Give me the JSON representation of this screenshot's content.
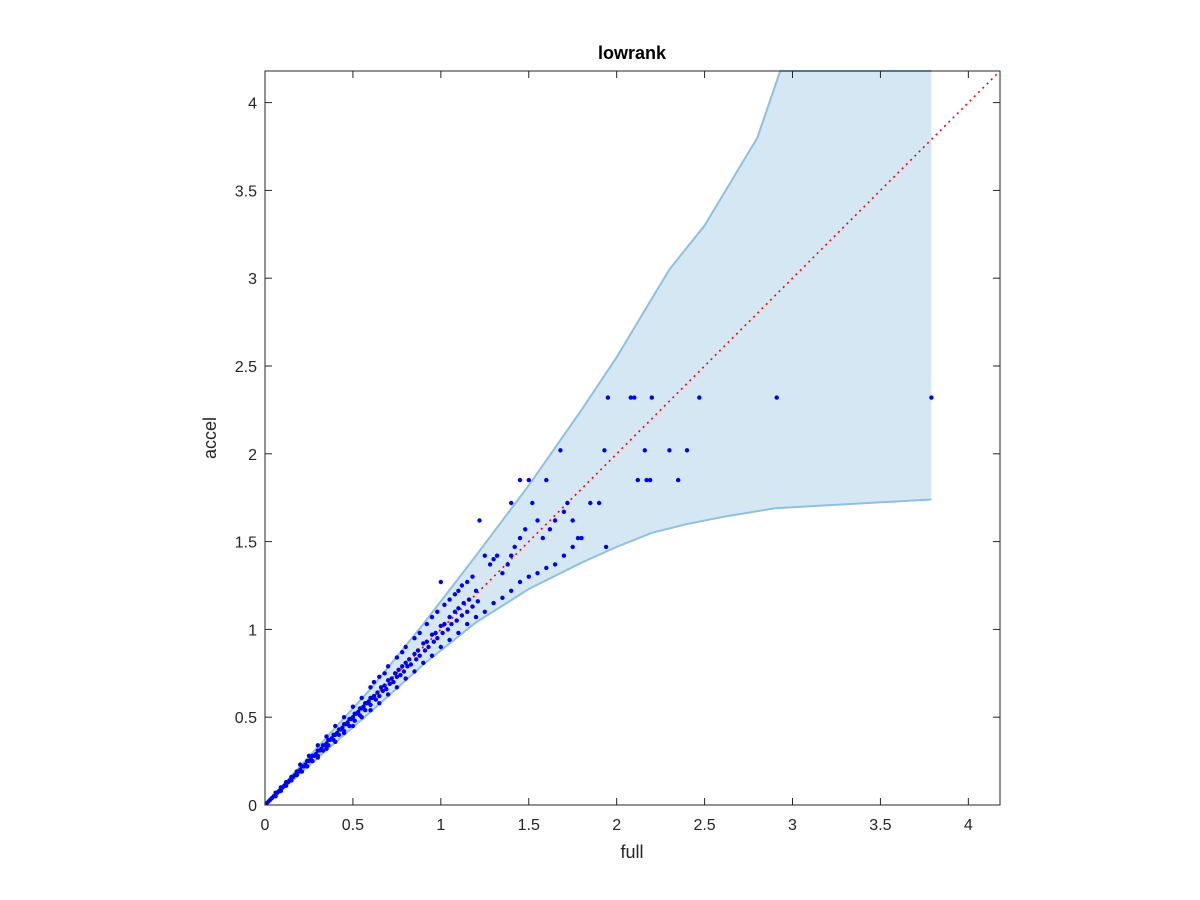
{
  "chart_data": {
    "type": "scatter",
    "title": "lowrank",
    "xlabel": "full",
    "ylabel": "accel",
    "xlim": [
      0,
      4.18
    ],
    "ylim": [
      0,
      4.18
    ],
    "xticks": [
      0,
      0.5,
      1,
      1.5,
      2,
      2.5,
      3,
      3.5,
      4
    ],
    "yticks": [
      0,
      0.5,
      1,
      1.5,
      2,
      2.5,
      3,
      3.5,
      4
    ],
    "xtick_labels": [
      "0",
      "0.5",
      "1",
      "1.5",
      "2",
      "2.5",
      "3",
      "3.5",
      "4"
    ],
    "ytick_labels": [
      "0",
      "0.5",
      "1",
      "1.5",
      "2",
      "2.5",
      "3",
      "3.5",
      "4"
    ],
    "grid": false,
    "legend": "none",
    "colors": {
      "points": "#0000ff",
      "band_fill": "#d6e7f4",
      "band_edge": "#8ec1e0",
      "reference_line": "#ff0000",
      "axes": "#262626"
    },
    "reference_line": {
      "style": "dotted",
      "points": [
        [
          0,
          0
        ],
        [
          4.18,
          4.18
        ]
      ]
    },
    "band": {
      "upper": [
        [
          0,
          0
        ],
        [
          0.3,
          0.33
        ],
        [
          0.6,
          0.66
        ],
        [
          0.9,
          1.03
        ],
        [
          1.2,
          1.42
        ],
        [
          1.5,
          1.82
        ],
        [
          1.8,
          2.25
        ],
        [
          2.0,
          2.55
        ],
        [
          2.3,
          3.05
        ],
        [
          2.5,
          3.3
        ],
        [
          2.8,
          3.8
        ],
        [
          2.93,
          4.18
        ],
        [
          3.79,
          4.18
        ]
      ],
      "lower": [
        [
          0,
          0
        ],
        [
          0.3,
          0.27
        ],
        [
          0.6,
          0.53
        ],
        [
          0.9,
          0.8
        ],
        [
          1.2,
          1.04
        ],
        [
          1.5,
          1.23
        ],
        [
          1.8,
          1.38
        ],
        [
          2.0,
          1.47
        ],
        [
          2.2,
          1.55
        ],
        [
          2.4,
          1.6
        ],
        [
          2.6,
          1.64
        ],
        [
          2.9,
          1.69
        ],
        [
          3.79,
          1.74
        ]
      ],
      "x_end": 3.79
    },
    "series": [
      {
        "points": [
          [
            0.01,
            0.01
          ],
          [
            0.02,
            0.02
          ],
          [
            0.03,
            0.03
          ],
          [
            0.04,
            0.04
          ],
          [
            0.05,
            0.05
          ],
          [
            0.06,
            0.05
          ],
          [
            0.06,
            0.07
          ],
          [
            0.07,
            0.07
          ],
          [
            0.08,
            0.08
          ],
          [
            0.09,
            0.08
          ],
          [
            0.09,
            0.1
          ],
          [
            0.1,
            0.1
          ],
          [
            0.11,
            0.11
          ],
          [
            0.12,
            0.11
          ],
          [
            0.12,
            0.13
          ],
          [
            0.13,
            0.13
          ],
          [
            0.14,
            0.14
          ],
          [
            0.15,
            0.14
          ],
          [
            0.15,
            0.16
          ],
          [
            0.16,
            0.16
          ],
          [
            0.17,
            0.17
          ],
          [
            0.18,
            0.17
          ],
          [
            0.18,
            0.19
          ],
          [
            0.19,
            0.19
          ],
          [
            0.2,
            0.2
          ],
          [
            0.21,
            0.19
          ],
          [
            0.21,
            0.22
          ],
          [
            0.22,
            0.22
          ],
          [
            0.23,
            0.23
          ],
          [
            0.24,
            0.22
          ],
          [
            0.24,
            0.25
          ],
          [
            0.25,
            0.25
          ],
          [
            0.26,
            0.26
          ],
          [
            0.27,
            0.25
          ],
          [
            0.27,
            0.28
          ],
          [
            0.28,
            0.28
          ],
          [
            0.29,
            0.29
          ],
          [
            0.3,
            0.28
          ],
          [
            0.3,
            0.31
          ],
          [
            0.31,
            0.31
          ],
          [
            0.32,
            0.32
          ],
          [
            0.33,
            0.31
          ],
          [
            0.33,
            0.34
          ],
          [
            0.34,
            0.34
          ],
          [
            0.35,
            0.35
          ],
          [
            0.36,
            0.34
          ],
          [
            0.36,
            0.37
          ],
          [
            0.37,
            0.37
          ],
          [
            0.38,
            0.38
          ],
          [
            0.39,
            0.37
          ],
          [
            0.39,
            0.4
          ],
          [
            0.4,
            0.4
          ],
          [
            0.41,
            0.41
          ],
          [
            0.42,
            0.4
          ],
          [
            0.42,
            0.43
          ],
          [
            0.43,
            0.43
          ],
          [
            0.44,
            0.44
          ],
          [
            0.45,
            0.42
          ],
          [
            0.45,
            0.46
          ],
          [
            0.46,
            0.46
          ],
          [
            0.47,
            0.47
          ],
          [
            0.48,
            0.45
          ],
          [
            0.48,
            0.49
          ],
          [
            0.49,
            0.49
          ],
          [
            0.5,
            0.5
          ],
          [
            0.51,
            0.48
          ],
          [
            0.51,
            0.52
          ],
          [
            0.52,
            0.52
          ],
          [
            0.53,
            0.53
          ],
          [
            0.54,
            0.51
          ],
          [
            0.54,
            0.55
          ],
          [
            0.55,
            0.55
          ],
          [
            0.56,
            0.56
          ],
          [
            0.57,
            0.54
          ],
          [
            0.57,
            0.58
          ],
          [
            0.58,
            0.58
          ],
          [
            0.59,
            0.59
          ],
          [
            0.6,
            0.57
          ],
          [
            0.6,
            0.61
          ],
          [
            0.61,
            0.61
          ],
          [
            0.62,
            0.62
          ],
          [
            0.63,
            0.6
          ],
          [
            0.64,
            0.64
          ],
          [
            0.65,
            0.62
          ],
          [
            0.66,
            0.67
          ],
          [
            0.67,
            0.65
          ],
          [
            0.68,
            0.68
          ],
          [
            0.69,
            0.66
          ],
          [
            0.7,
            0.71
          ],
          [
            0.71,
            0.69
          ],
          [
            0.72,
            0.72
          ],
          [
            0.73,
            0.7
          ],
          [
            0.74,
            0.75
          ],
          [
            0.75,
            0.73
          ],
          [
            0.76,
            0.77
          ],
          [
            0.77,
            0.74
          ],
          [
            0.78,
            0.79
          ],
          [
            0.79,
            0.76
          ],
          [
            0.8,
            0.81
          ],
          [
            0.81,
            0.79
          ],
          [
            0.82,
            0.83
          ],
          [
            0.83,
            0.8
          ],
          [
            0.85,
            0.86
          ],
          [
            0.86,
            0.83
          ],
          [
            0.87,
            0.88
          ],
          [
            0.88,
            0.85
          ],
          [
            0.9,
            0.92
          ],
          [
            0.91,
            0.88
          ],
          [
            0.92,
            0.93
          ],
          [
            0.93,
            0.9
          ],
          [
            0.95,
            0.97
          ],
          [
            0.96,
            0.93
          ],
          [
            0.97,
            0.98
          ],
          [
            0.98,
            0.95
          ],
          [
            1.0,
            1.02
          ],
          [
            1.01,
            0.98
          ],
          [
            1.02,
            1.03
          ],
          [
            1.04,
            1.0
          ],
          [
            1.05,
            1.07
          ],
          [
            1.06,
            1.03
          ],
          [
            1.08,
            1.1
          ],
          [
            1.09,
            1.05
          ],
          [
            1.1,
            1.12
          ],
          [
            1.12,
            1.08
          ],
          [
            1.13,
            1.15
          ],
          [
            1.15,
            1.1
          ],
          [
            1.16,
            1.17
          ],
          [
            1.18,
            1.13
          ],
          [
            1.2,
            1.22
          ],
          [
            1.21,
            1.16
          ],
          [
            0.2,
            0.23
          ],
          [
            0.25,
            0.28
          ],
          [
            0.3,
            0.34
          ],
          [
            0.35,
            0.39
          ],
          [
            0.4,
            0.45
          ],
          [
            0.45,
            0.5
          ],
          [
            0.5,
            0.56
          ],
          [
            0.55,
            0.61
          ],
          [
            0.6,
            0.67
          ],
          [
            0.62,
            0.7
          ],
          [
            0.65,
            0.73
          ],
          [
            0.68,
            0.75
          ],
          [
            0.7,
            0.79
          ],
          [
            0.75,
            0.84
          ],
          [
            0.78,
            0.87
          ],
          [
            0.8,
            0.9
          ],
          [
            0.85,
            0.95
          ],
          [
            0.88,
            0.98
          ],
          [
            0.92,
            1.03
          ],
          [
            0.95,
            1.07
          ],
          [
            0.98,
            1.1
          ],
          [
            1.0,
            1.27
          ],
          [
            1.02,
            1.14
          ],
          [
            1.05,
            1.17
          ],
          [
            1.08,
            1.2
          ],
          [
            1.1,
            1.22
          ],
          [
            1.12,
            1.25
          ],
          [
            1.15,
            1.27
          ],
          [
            1.18,
            1.3
          ],
          [
            1.22,
            1.62
          ],
          [
            1.25,
            1.42
          ],
          [
            1.28,
            1.37
          ],
          [
            1.3,
            1.4
          ],
          [
            1.32,
            1.42
          ],
          [
            1.35,
            1.32
          ],
          [
            1.38,
            1.37
          ],
          [
            1.4,
            1.42
          ],
          [
            1.42,
            1.47
          ],
          [
            1.45,
            1.52
          ],
          [
            1.48,
            1.57
          ],
          [
            1.5,
            1.85
          ],
          [
            1.52,
            1.72
          ],
          [
            1.55,
            1.62
          ],
          [
            1.58,
            1.52
          ],
          [
            1.62,
            1.57
          ],
          [
            1.65,
            1.62
          ],
          [
            1.68,
            2.02
          ],
          [
            1.7,
            1.67
          ],
          [
            1.72,
            1.72
          ],
          [
            1.75,
            1.62
          ],
          [
            1.78,
            1.52
          ],
          [
            1.85,
            1.72
          ],
          [
            1.9,
            1.72
          ],
          [
            0.3,
            0.27
          ],
          [
            0.35,
            0.32
          ],
          [
            0.4,
            0.36
          ],
          [
            0.45,
            0.41
          ],
          [
            0.5,
            0.45
          ],
          [
            0.55,
            0.5
          ],
          [
            0.6,
            0.54
          ],
          [
            0.65,
            0.58
          ],
          [
            0.7,
            0.63
          ],
          [
            0.75,
            0.67
          ],
          [
            0.8,
            0.72
          ],
          [
            0.85,
            0.76
          ],
          [
            0.9,
            0.81
          ],
          [
            0.95,
            0.85
          ],
          [
            1.0,
            0.9
          ],
          [
            1.05,
            0.94
          ],
          [
            1.1,
            0.98
          ],
          [
            1.15,
            1.03
          ],
          [
            1.2,
            1.07
          ],
          [
            1.25,
            1.1
          ],
          [
            1.3,
            1.15
          ],
          [
            1.35,
            1.18
          ],
          [
            1.4,
            1.22
          ],
          [
            1.45,
            1.27
          ],
          [
            1.5,
            1.3
          ],
          [
            1.55,
            1.32
          ],
          [
            1.6,
            1.35
          ],
          [
            1.65,
            1.37
          ],
          [
            1.7,
            1.42
          ],
          [
            1.75,
            1.47
          ],
          [
            1.8,
            1.52
          ],
          [
            1.95,
            2.32
          ],
          [
            2.08,
            2.32
          ],
          [
            2.1,
            2.32
          ],
          [
            2.2,
            2.32
          ],
          [
            2.47,
            2.32
          ],
          [
            2.91,
            2.32
          ],
          [
            3.79,
            2.32
          ],
          [
            1.93,
            2.02
          ],
          [
            2.16,
            2.02
          ],
          [
            2.3,
            2.02
          ],
          [
            2.4,
            2.02
          ],
          [
            2.12,
            1.85
          ],
          [
            2.17,
            1.85
          ],
          [
            2.19,
            1.85
          ],
          [
            2.35,
            1.85
          ],
          [
            1.94,
            1.47
          ],
          [
            1.6,
            1.85
          ],
          [
            1.4,
            1.72
          ],
          [
            1.45,
            1.85
          ]
        ]
      }
    ]
  }
}
